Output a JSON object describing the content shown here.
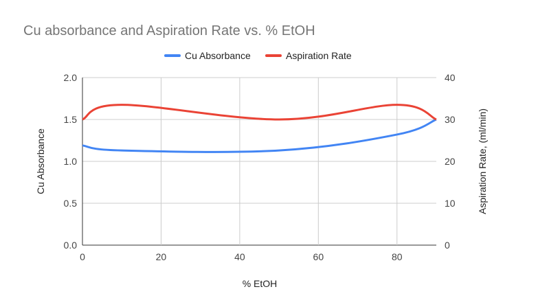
{
  "chart_data": {
    "type": "line",
    "title": "Cu absorbance and Aspiration Rate vs. % EtOH",
    "xlabel": "% EtOH",
    "ylabel": "Cu Absorbance",
    "y2label": "Aspiration Rate, (ml/min)",
    "xlim": [
      0,
      90
    ],
    "ylim": [
      0,
      2.0
    ],
    "y2lim": [
      0,
      40
    ],
    "xticks": [
      "0",
      "20",
      "40",
      "60",
      "80"
    ],
    "yticks": [
      "0.0",
      "0.5",
      "1.0",
      "1.5",
      "2.0"
    ],
    "y2ticks": [
      "0",
      "10",
      "20",
      "30",
      "40"
    ],
    "grid": true,
    "legend_position": "top",
    "x": [
      0,
      10,
      50,
      80,
      90
    ],
    "series": [
      {
        "name": "Cu Absorbance",
        "axis": "left",
        "color": "#4285f4",
        "values": [
          1.19,
          1.13,
          1.13,
          1.32,
          1.5
        ]
      },
      {
        "name": "Aspiration Rate",
        "axis": "right",
        "color": "#ea4335",
        "values": [
          30,
          33.5,
          30,
          33.5,
          30
        ]
      }
    ]
  }
}
